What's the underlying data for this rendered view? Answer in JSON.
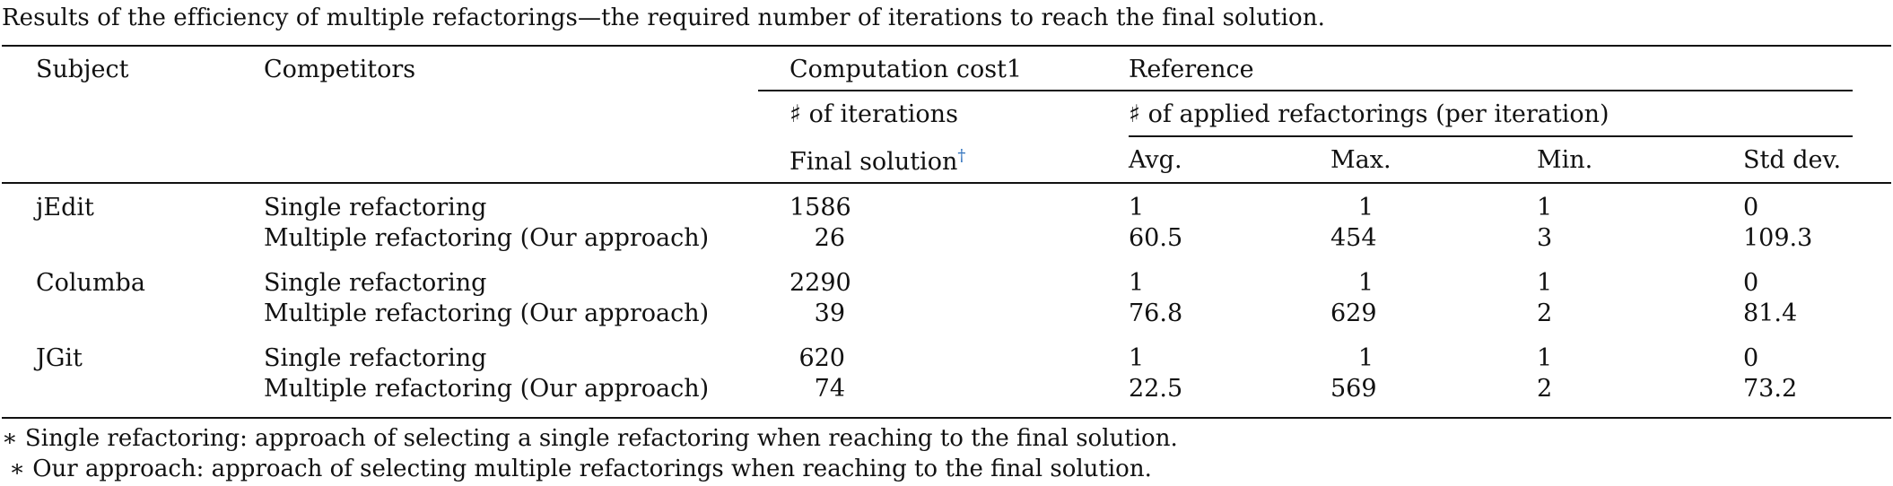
{
  "caption": "Results of the efficiency of multiple refactorings—the required number of iterations to reach the final solution.",
  "headers": {
    "subject": "Subject",
    "competitors": "Competitors",
    "computation_cost": "Computation cost1",
    "reference": "Reference",
    "num_iterations": "♯ of iterations",
    "num_applied": "♯ of applied refactorings (per iteration)",
    "final_solution": "Final solution",
    "final_solution_mark": "†",
    "avg": "Avg.",
    "max": "Max.",
    "min": "Min.",
    "std": "Std dev."
  },
  "rows": [
    {
      "subject": "jEdit",
      "competitor": "Single refactoring",
      "final": "1586",
      "avg": "1",
      "max": "1",
      "min": "1",
      "std": "0"
    },
    {
      "subject": "",
      "competitor": "Multiple refactoring (Our approach)",
      "final": "26",
      "avg": "60.5",
      "max": "454",
      "min": "3",
      "std": "109.3"
    },
    {
      "subject": "Columba",
      "competitor": "Single refactoring",
      "final": "2290",
      "avg": "1",
      "max": "1",
      "min": "1",
      "std": "0"
    },
    {
      "subject": "",
      "competitor": "Multiple refactoring (Our approach)",
      "final": "39",
      "avg": "76.8",
      "max": "629",
      "min": "2",
      "std": "81.4"
    },
    {
      "subject": "JGit",
      "competitor": "Single refactoring",
      "final": "620",
      "avg": "1",
      "max": "1",
      "min": "1",
      "std": "0"
    },
    {
      "subject": "",
      "competitor": "Multiple refactoring (Our approach)",
      "final": "74",
      "avg": "22.5",
      "max": "569",
      "min": "2",
      "std": "73.2"
    }
  ],
  "footnotes": [
    "∗ Single refactoring: approach of selecting a single refactoring when reaching to the final solution.",
    " ∗ Our approach: approach of selecting multiple refactorings when reaching to the final solution."
  ]
}
